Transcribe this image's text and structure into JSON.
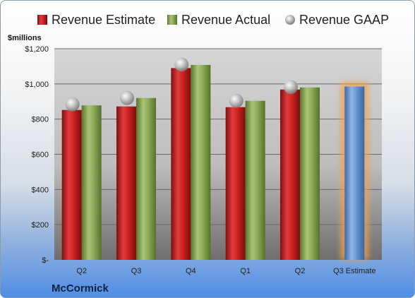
{
  "chart_data": {
    "type": "bar",
    "ylabel": "$millions",
    "company": "McCormick",
    "categories": [
      "Q2",
      "Q3",
      "Q4",
      "Q1",
      "Q2",
      "Q3 Estimate"
    ],
    "ylim": [
      0,
      1200
    ],
    "yticks": [
      0,
      200,
      400,
      600,
      800,
      1000,
      1200
    ],
    "ytick_labels": [
      "$-",
      "$200",
      "$400",
      "$600",
      "$800",
      "$1,000",
      "$1,200"
    ],
    "grid": true,
    "legend": "top",
    "series": [
      {
        "name": "Revenue Estimate",
        "kind": "bar",
        "color": "#cc2222",
        "values": [
          852,
          872,
          1090,
          868,
          968,
          null
        ]
      },
      {
        "name": "Revenue Actual",
        "kind": "bar",
        "color": "#8fad5a",
        "values": [
          878,
          920,
          1108,
          904,
          980,
          null
        ]
      },
      {
        "name": "Revenue GAAP",
        "kind": "marker",
        "color": "#b8b8b8",
        "values": [
          884,
          920,
          1110,
          904,
          982,
          null
        ]
      }
    ],
    "estimate": {
      "category_index": 5,
      "value": 985,
      "color": "#6a95d0",
      "glow": "#f2a24a"
    }
  }
}
